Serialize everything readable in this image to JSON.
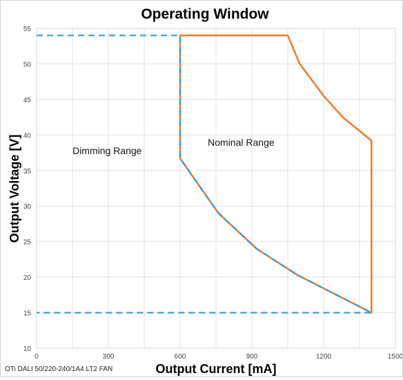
{
  "chart_data": {
    "type": "line",
    "title": "Operating Window",
    "xlabel": "Output Current [mA]",
    "ylabel": "Output Voltage [V]",
    "xlim": [
      0,
      1500
    ],
    "ylim": [
      10,
      55
    ],
    "xticks": [
      "0",
      "300",
      "600",
      "900",
      "1200",
      "1500"
    ],
    "yticks": [
      "10",
      "15",
      "20",
      "25",
      "30",
      "35",
      "40",
      "45",
      "50",
      "55"
    ],
    "grid": true,
    "legend": "none",
    "series": [
      {
        "style": "solid",
        "color": "#ed7d31",
        "x": [
          600,
          600,
          1050,
          1100,
          1200,
          1280,
          1400,
          1400,
          1090,
          920,
          760,
          600
        ],
        "y": [
          36.7,
          54,
          54,
          50,
          45.5,
          42.5,
          39.2,
          15,
          20.3,
          24,
          29,
          36.7
        ]
      },
      {
        "style": "dashed",
        "color": "#2e9fd8",
        "x": [
          0,
          600,
          600,
          760,
          920,
          1090,
          1400,
          0
        ],
        "y": [
          54,
          54,
          36.7,
          29,
          24,
          20.3,
          15,
          15
        ]
      }
    ],
    "annotations": [
      {
        "text": "Dimming Range",
        "x": 295,
        "y": 37.3
      },
      {
        "text": "Nominal Range",
        "x": 855,
        "y": 38.5
      }
    ]
  },
  "footnote": "OTi DALI 50/220-240/1A4 LT2 FAN"
}
